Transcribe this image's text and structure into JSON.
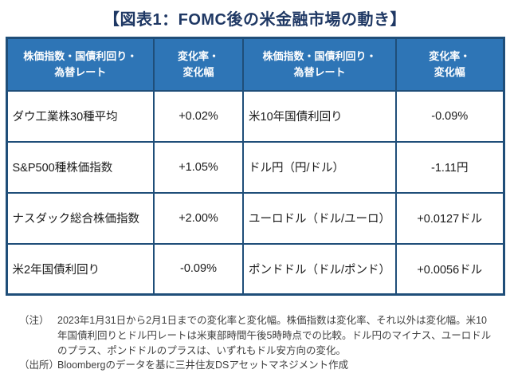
{
  "title": "【図表1：FOMC後の米金融市場の動き】",
  "colors": {
    "title_text": "#1f3864",
    "header_bg": "#2e75b6",
    "header_text": "#ffffff",
    "table_border": "#1f4e79",
    "body_text": "#1a1a1a",
    "note_text": "#3f3f3f"
  },
  "chart_data": {
    "type": "table",
    "title": "図表1:FOMC後の米金融市場の動き",
    "columns": [
      "株価指数・国債利回り・\n為替レート",
      "変化率・\n変化幅",
      "株価指数・国債利回り・\n為替レート",
      "変化率・\n変化幅"
    ],
    "rows": [
      [
        "ダウ工業株30種平均",
        "+0.02%",
        "米10年国債利回り",
        "-0.09%"
      ],
      [
        "S&P500種株価指数",
        "+1.05%",
        "ドル円（円/ドル）",
        "-1.11円"
      ],
      [
        "ナスダック総合株価指数",
        "+2.00%",
        "ユーロドル（ドル/ユーロ）",
        "+0.0127ドル"
      ],
      [
        "米2年国債利回り",
        "-0.09%",
        "ポンドドル（ドル/ポンド）",
        "+0.0056ドル"
      ]
    ]
  },
  "notes": [
    {
      "label": "（注）",
      "text": "2023年1月31日から2月1日までの変化率と変化幅。株価指数は変化率、それ以外は変化幅。米10年国債利回りとドル円レートは米東部時間午後5時時点での比較。ドル円のマイナス、ユーロドルのプラス、ポンドドルのプラスは、いずれもドル安方向の変化。"
    },
    {
      "label": "（出所）",
      "text": "Bloombergのデータを基に三井住友DSアセットマネジメント作成"
    }
  ]
}
